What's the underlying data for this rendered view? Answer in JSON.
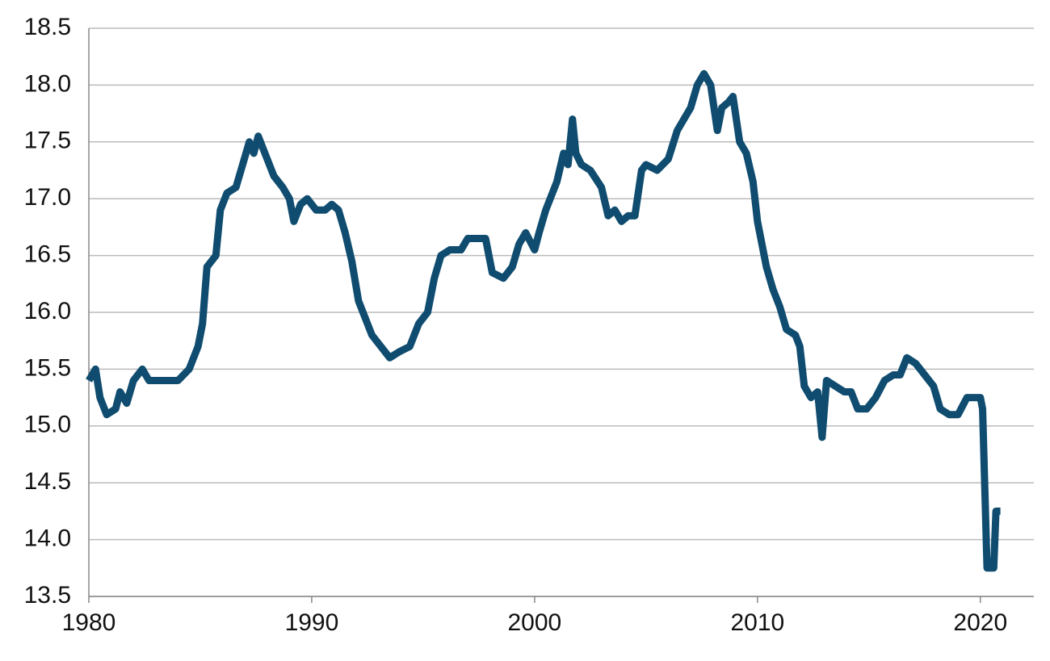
{
  "chart_data": {
    "type": "line",
    "color": "#0f4c6f",
    "x": [
      1980.0,
      1980.3,
      1980.5,
      1980.8,
      1981.2,
      1981.4,
      1981.7,
      1982.0,
      1982.4,
      1982.7,
      1983.3,
      1984.0,
      1984.5,
      1984.9,
      1985.1,
      1985.3,
      1985.7,
      1985.9,
      1986.2,
      1986.6,
      1986.9,
      1987.2,
      1987.4,
      1987.6,
      1987.9,
      1988.3,
      1988.7,
      1989.0,
      1989.2,
      1989.5,
      1989.8,
      1990.2,
      1990.6,
      1990.9,
      1991.2,
      1991.5,
      1991.8,
      1992.1,
      1992.4,
      1992.7,
      1993.1,
      1993.5,
      1993.9,
      1994.4,
      1994.8,
      1995.2,
      1995.5,
      1995.8,
      1996.2,
      1996.7,
      1997.0,
      1997.8,
      1998.1,
      1998.6,
      1999.0,
      1999.3,
      1999.6,
      2000.0,
      2000.2,
      2000.5,
      2000.8,
      2001.0,
      2001.3,
      2001.5,
      2001.7,
      2001.85,
      2002.1,
      2002.5,
      2003.0,
      2003.3,
      2003.6,
      2003.9,
      2004.2,
      2004.5,
      2004.8,
      2005.0,
      2005.5,
      2006.0,
      2006.4,
      2006.7,
      2007.0,
      2007.3,
      2007.6,
      2007.9,
      2008.2,
      2008.4,
      2008.7,
      2008.9,
      2009.2,
      2009.5,
      2009.8,
      2010.0,
      2010.4,
      2010.7,
      2011.0,
      2011.3,
      2011.7,
      2011.9,
      2012.1,
      2012.4,
      2012.7,
      2012.9,
      2013.1,
      2013.5,
      2013.9,
      2014.2,
      2014.5,
      2014.9,
      2015.3,
      2015.7,
      2016.1,
      2016.4,
      2016.7,
      2017.1,
      2017.5,
      2017.9,
      2018.2,
      2018.6,
      2019.0,
      2019.4,
      2019.7,
      2020.0,
      2020.1,
      2020.3,
      2020.6,
      2020.7,
      2020.9
    ],
    "values": [
      15.4,
      15.5,
      15.25,
      15.1,
      15.15,
      15.3,
      15.2,
      15.4,
      15.5,
      15.4,
      15.4,
      15.4,
      15.5,
      15.7,
      15.9,
      16.4,
      16.5,
      16.9,
      17.05,
      17.1,
      17.3,
      17.5,
      17.4,
      17.55,
      17.4,
      17.2,
      17.1,
      17.0,
      16.8,
      16.95,
      17.0,
      16.9,
      16.9,
      16.95,
      16.9,
      16.7,
      16.45,
      16.1,
      15.95,
      15.8,
      15.7,
      15.6,
      15.65,
      15.7,
      15.9,
      16.0,
      16.3,
      16.5,
      16.55,
      16.55,
      16.65,
      16.65,
      16.35,
      16.3,
      16.4,
      16.6,
      16.7,
      16.55,
      16.7,
      16.9,
      17.05,
      17.15,
      17.4,
      17.3,
      17.7,
      17.4,
      17.3,
      17.25,
      17.1,
      16.85,
      16.9,
      16.8,
      16.85,
      16.85,
      17.25,
      17.3,
      17.25,
      17.35,
      17.6,
      17.7,
      17.8,
      18.0,
      18.1,
      18.0,
      17.6,
      17.8,
      17.85,
      17.9,
      17.5,
      17.4,
      17.15,
      16.8,
      16.4,
      16.2,
      16.05,
      15.85,
      15.8,
      15.7,
      15.35,
      15.25,
      15.3,
      14.9,
      15.4,
      15.35,
      15.3,
      15.3,
      15.15,
      15.15,
      15.25,
      15.4,
      15.45,
      15.45,
      15.6,
      15.55,
      15.45,
      15.35,
      15.15,
      15.1,
      15.1,
      15.25,
      15.25,
      15.25,
      15.15,
      13.75,
      13.75,
      14.25,
      14.25
    ],
    "xlim": [
      1980,
      2022.4
    ],
    "xticks": [
      1980,
      1990,
      2000,
      2010,
      2020
    ],
    "ylim": [
      13.5,
      18.5
    ],
    "yticks": [
      {
        "value": 13.5,
        "label": "13.5"
      },
      {
        "value": 14,
        "label": "14.0"
      },
      {
        "value": 14.5,
        "label": "14.5"
      },
      {
        "value": 15,
        "label": "15.0"
      },
      {
        "value": 15.5,
        "label": "15.5"
      },
      {
        "value": 16,
        "label": "16.0"
      },
      {
        "value": 16.5,
        "label": "16.5"
      },
      {
        "value": 17,
        "label": "17.0"
      },
      {
        "value": 17.5,
        "label": "17.5"
      },
      {
        "value": 18,
        "label": "18.0"
      },
      {
        "value": 18.5,
        "label": "18.5"
      }
    ],
    "grid": true
  }
}
